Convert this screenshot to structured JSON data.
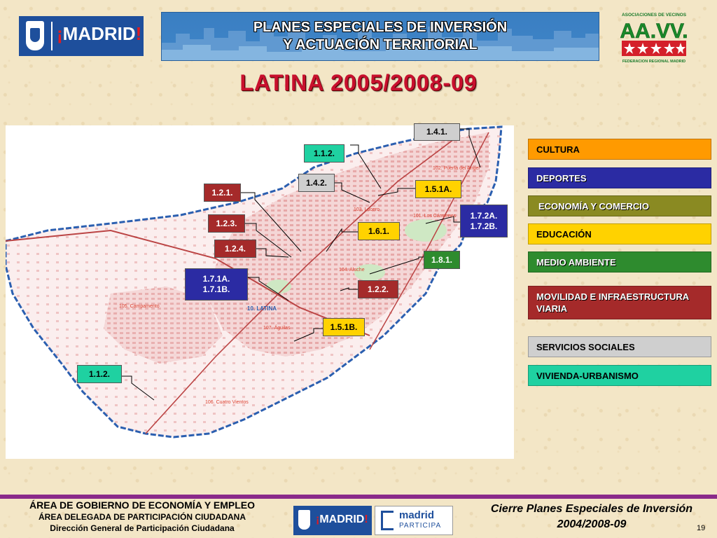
{
  "header": {
    "logo_text_open": "¡",
    "logo_text": "MADRID",
    "logo_text_close": "!",
    "banner_line1": "PLANES ESPECIALES DE INVERSIÓN",
    "banner_line2": "Y ACTUACIÓN TERRITORIAL",
    "aavv_top": "ASOCIACIONES DE VECINOS",
    "aavv_mark": "AA.VV.",
    "aavv_bottom": "FEDERACION REGIONAL MADRID"
  },
  "title": "LATINA 2005/2008-09",
  "map": {
    "district_label": "10. LATINA",
    "neighborhoods": [
      "102. Puerta del Angel",
      "103. Lucero",
      "101. Los Cármenes",
      "104. Aluche",
      "105. Campamento",
      "107. Águilas",
      "106. Cuatro Vientos"
    ],
    "callouts": [
      {
        "code": "1.4.1.",
        "category": "servicios-sociales"
      },
      {
        "code": "1.1.2.",
        "category": "cultura-vivienda"
      },
      {
        "code": "1.4.2.",
        "category": "servicios-sociales"
      },
      {
        "code": "1.2.1.",
        "category": "movilidad"
      },
      {
        "code": "1.5.1A.",
        "category": "educacion"
      },
      {
        "code": "1.7.2A.\n1.7.2B.",
        "category": "deportes"
      },
      {
        "code": "1.2.3.",
        "category": "movilidad"
      },
      {
        "code": "1.6.1.",
        "category": "educacion"
      },
      {
        "code": "1.2.4.",
        "category": "movilidad"
      },
      {
        "code": "1.8.1.",
        "category": "medio-ambiente"
      },
      {
        "code": "1.7.1A.\n1.7.1B.",
        "category": "deportes"
      },
      {
        "code": "1.2.2.",
        "category": "movilidad"
      },
      {
        "code": "1.5.1B.",
        "category": "educacion"
      },
      {
        "code": "1.1.2.",
        "category": "vivienda"
      }
    ]
  },
  "legend": [
    {
      "label": "CULTURA",
      "color": "#ff9a00"
    },
    {
      "label": "DEPORTES",
      "color": "#2b2ba3"
    },
    {
      "label": "ECONOMÍA Y COMERCIO",
      "color": "#8a8a22"
    },
    {
      "label": "EDUCACIÓN",
      "color": "#ffd200"
    },
    {
      "label": "MEDIO AMBIENTE",
      "color": "#2e8b2e"
    },
    {
      "label": "MOVILIDAD E INFRAESTRUCTURA VIARIA",
      "color": "#a52a2a"
    },
    {
      "label": "SERVICIOS SOCIALES",
      "color": "#cfcfcf"
    },
    {
      "label": "VIVIENDA-URBANISMO",
      "color": "#1fd1a1"
    }
  ],
  "footer": {
    "left_line1": "ÁREA DE GOBIERNO DE ECONOMÍA Y EMPLEO",
    "left_line2": "ÁREA DELEGADA DE PARTICIPACIÓN CIUDADANA",
    "left_line3": "Dirección General de Participación Ciudadana",
    "logo1_text_open": "¡",
    "logo1_text": "MADRID",
    "logo1_text_close": "!",
    "logo2_line1": "madrid",
    "logo2_line2": "PARTICIPA",
    "right_line1": "Cierre Planes Especiales de Inversión",
    "right_line2": "2004/2008-09",
    "page_number": "19"
  }
}
